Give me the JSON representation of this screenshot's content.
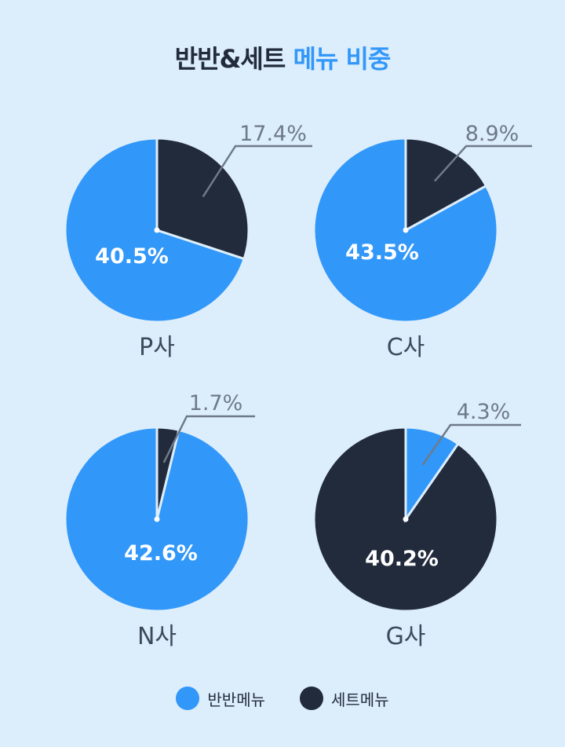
{
  "title": {
    "part1": "반반&세트",
    "part2": "메뉴 비중"
  },
  "colors": {
    "half_menu": "#3197f9",
    "set_menu": "#222b3c",
    "callout": "#6f7a88",
    "label": "#3d4a5c"
  },
  "legend": [
    {
      "label": "반반메뉴",
      "color": "#3197f9"
    },
    {
      "label": "세트메뉴",
      "color": "#222b3c"
    }
  ],
  "chart_data": [
    {
      "type": "pie",
      "title": "P사",
      "labels": [
        "반반메뉴",
        "세트메뉴"
      ],
      "values": [
        40.5,
        17.4
      ],
      "display": [
        "40.5%",
        "17.4%"
      ]
    },
    {
      "type": "pie",
      "title": "C사",
      "labels": [
        "반반메뉴",
        "세트메뉴"
      ],
      "values": [
        43.5,
        8.9
      ],
      "display": [
        "43.5%",
        "8.9%"
      ]
    },
    {
      "type": "pie",
      "title": "N사",
      "labels": [
        "반반메뉴",
        "세트메뉴"
      ],
      "values": [
        42.6,
        1.7
      ],
      "display": [
        "42.6%",
        "1.7%"
      ]
    },
    {
      "type": "pie",
      "title": "G사",
      "labels": [
        "반반메뉴",
        "세트메뉴"
      ],
      "values": [
        4.3,
        40.2
      ],
      "display": [
        "4.3%",
        "40.2%"
      ]
    }
  ]
}
